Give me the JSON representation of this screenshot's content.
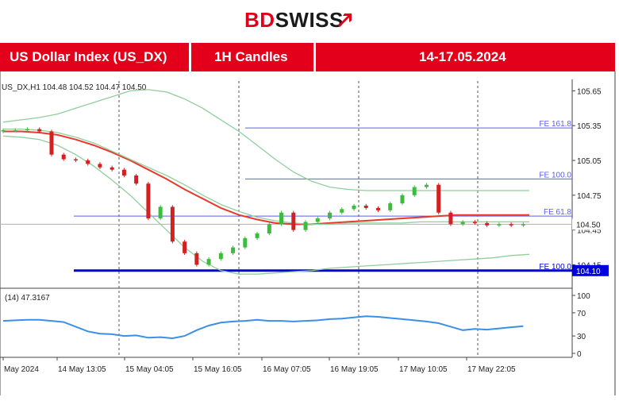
{
  "brand": {
    "logo_text_a": "BD",
    "logo_text_b": "SWISS"
  },
  "header": {
    "instrument": "US Dollar Index (US_DX)",
    "timeframe": "1H Candles",
    "dates": "14-17.05.2024"
  },
  "chart_data": {
    "type": "line",
    "info": "US_DX,H1  104.48 104.52 104.47 104.50",
    "price_axis": {
      "ticks": [
        "105.65",
        "105.35",
        "105.05",
        "104.75",
        "104.45",
        "104.15"
      ],
      "ylim": [
        104.03,
        105.68
      ],
      "current_price_label": "104.50",
      "support_label": "104.10"
    },
    "time_axis": {
      "labels": [
        "May 2024",
        "14 May 13:05",
        "15 May 04:05",
        "15 May 16:05",
        "16 May 07:05",
        "16 May 19:05",
        "17 May 10:05",
        "17 May 22:05"
      ],
      "session_separators": [
        "15 May 04:05",
        "15 May 16:05",
        "16 May 19:05",
        "17 May 22:05"
      ]
    },
    "x_hours": [
      0,
      3,
      6,
      9,
      12,
      15,
      18,
      21,
      24,
      27,
      30,
      33,
      36,
      39,
      42,
      45,
      48,
      51,
      54,
      57,
      60,
      63,
      66,
      69,
      72,
      75,
      78,
      81,
      84,
      87
    ],
    "series": [
      {
        "color": "#e8392c",
        "values": [
          105.3,
          105.3,
          105.29,
          105.27,
          105.23,
          105.18,
          105.12,
          105.05,
          104.97,
          104.89,
          104.8,
          104.72,
          104.64,
          104.58,
          104.54,
          104.51,
          104.5,
          104.5,
          104.51,
          104.52,
          104.53,
          104.54,
          104.55,
          104.56,
          104.57,
          104.58,
          104.58,
          104.58,
          104.58,
          104.58
        ]
      },
      {
        "color": "#8fcf9c",
        "values": [
          105.38,
          105.4,
          105.42,
          105.45,
          105.5,
          105.55,
          105.6,
          105.65,
          105.66,
          105.64,
          105.58,
          105.5,
          105.4,
          105.3,
          105.18,
          105.06,
          104.95,
          104.87,
          104.82,
          104.8,
          104.79,
          104.79,
          104.79,
          104.79,
          104.79,
          104.79,
          104.79,
          104.79,
          104.79,
          104.79
        ]
      },
      {
        "color": "#8fcf9c",
        "values": [
          105.26,
          105.25,
          105.23,
          105.18,
          105.1,
          105.0,
          104.88,
          104.75,
          104.6,
          104.45,
          104.3,
          104.18,
          104.1,
          104.07,
          104.07,
          104.08,
          104.09,
          104.1,
          104.12,
          104.13,
          104.14,
          104.15,
          104.16,
          104.17,
          104.18,
          104.19,
          104.2,
          104.21,
          104.23,
          104.24
        ]
      },
      {
        "color": "#8fcf9c",
        "values": [
          105.32,
          105.32,
          105.31,
          105.29,
          105.25,
          105.2,
          105.13,
          105.06,
          104.99,
          104.92,
          104.84,
          104.75,
          104.67,
          104.61,
          104.56,
          104.53,
          104.51,
          104.5,
          104.5,
          104.51,
          104.51,
          104.51,
          104.51,
          104.52,
          104.52,
          104.52,
          104.52,
          104.52,
          104.52,
          104.52
        ]
      }
    ],
    "candles": {
      "hours": [
        0,
        2,
        4,
        6,
        8,
        10,
        12,
        14,
        16,
        18,
        20,
        22,
        24,
        26,
        28,
        30,
        32,
        34,
        36,
        38,
        40,
        42,
        44,
        46,
        48,
        50,
        52,
        54,
        56,
        58,
        60,
        62,
        64,
        66,
        68,
        70,
        72,
        74,
        76,
        78,
        80,
        82,
        84,
        86
      ],
      "open": [
        105.3,
        105.31,
        105.31,
        105.32,
        105.3,
        105.1,
        105.06,
        105.05,
        105.02,
        104.99,
        104.97,
        104.92,
        104.85,
        104.55,
        104.65,
        104.35,
        104.25,
        104.15,
        104.2,
        104.25,
        104.3,
        104.38,
        104.42,
        104.5,
        104.6,
        104.45,
        104.52,
        104.55,
        104.6,
        104.63,
        104.66,
        104.64,
        104.62,
        104.68,
        104.75,
        104.82,
        104.84,
        104.6,
        104.5,
        104.52,
        104.51,
        104.49,
        104.5,
        104.49
      ],
      "close": [
        105.31,
        105.31,
        105.32,
        105.3,
        105.1,
        105.06,
        105.05,
        105.02,
        104.99,
        104.97,
        104.92,
        104.85,
        104.55,
        104.65,
        104.35,
        104.25,
        104.15,
        104.2,
        104.25,
        104.3,
        104.38,
        104.42,
        104.5,
        104.6,
        104.45,
        104.52,
        104.55,
        104.6,
        104.63,
        104.66,
        104.64,
        104.62,
        104.68,
        104.75,
        104.82,
        104.84,
        104.6,
        104.5,
        104.52,
        104.51,
        104.49,
        104.5,
        104.49,
        104.5
      ],
      "up_color": "#3dbb3d",
      "down_color": "#d32020"
    },
    "horizontal_lines": [
      {
        "label": "FE 161.8",
        "value": 105.33,
        "color": "#5a5ff0"
      },
      {
        "label": "FE 100.0",
        "value": 104.89,
        "color": "#5a5ff0"
      },
      {
        "label": "FE 61.8",
        "value": 104.57,
        "color": "#5a5ff0"
      },
      {
        "label": "FE 100.0",
        "value": 104.1,
        "color": "#0000dd"
      }
    ],
    "current_price_line": 104.5,
    "rsi": {
      "label": "(14) 47.3167",
      "ticks": [
        "100",
        "70",
        "30",
        "0"
      ],
      "ylim": [
        0,
        100
      ],
      "color": "#3b8fe8",
      "values": [
        56,
        57,
        58,
        58,
        56,
        54,
        46,
        38,
        34,
        33,
        30,
        31,
        27,
        28,
        26,
        30,
        40,
        48,
        53,
        55,
        56,
        58,
        56,
        56,
        55,
        56,
        57,
        59,
        60,
        62,
        64,
        63,
        61,
        59,
        57,
        55,
        52,
        46,
        40,
        42,
        41,
        43,
        45,
        47
      ]
    }
  }
}
